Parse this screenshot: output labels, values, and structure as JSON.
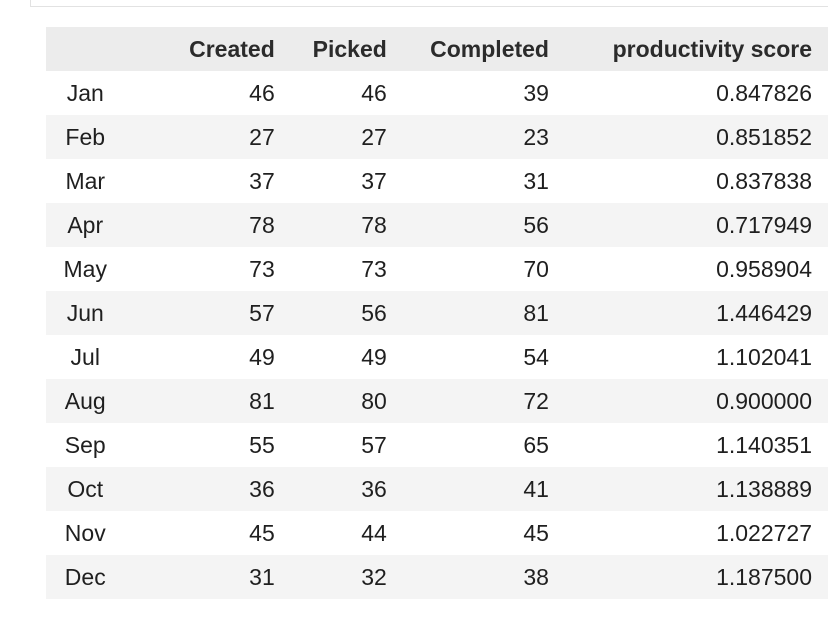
{
  "table": {
    "columns": [
      "",
      "Created",
      "Picked",
      "Completed",
      "productivity score"
    ],
    "rows": [
      {
        "month": "Jan",
        "created": "46",
        "picked": "46",
        "completed": "39",
        "score": "0.847826"
      },
      {
        "month": "Feb",
        "created": "27",
        "picked": "27",
        "completed": "23",
        "score": "0.851852"
      },
      {
        "month": "Mar",
        "created": "37",
        "picked": "37",
        "completed": "31",
        "score": "0.837838"
      },
      {
        "month": "Apr",
        "created": "78",
        "picked": "78",
        "completed": "56",
        "score": "0.717949"
      },
      {
        "month": "May",
        "created": "73",
        "picked": "73",
        "completed": "70",
        "score": "0.958904"
      },
      {
        "month": "Jun",
        "created": "57",
        "picked": "56",
        "completed": "81",
        "score": "1.446429"
      },
      {
        "month": "Jul",
        "created": "49",
        "picked": "49",
        "completed": "54",
        "score": "1.102041"
      },
      {
        "month": "Aug",
        "created": "81",
        "picked": "80",
        "completed": "72",
        "score": "0.900000"
      },
      {
        "month": "Sep",
        "created": "55",
        "picked": "57",
        "completed": "65",
        "score": "1.140351"
      },
      {
        "month": "Oct",
        "created": "36",
        "picked": "36",
        "completed": "41",
        "score": "1.138889"
      },
      {
        "month": "Nov",
        "created": "45",
        "picked": "44",
        "completed": "45",
        "score": "1.022727"
      },
      {
        "month": "Dec",
        "created": "31",
        "picked": "32",
        "completed": "38",
        "score": "1.187500"
      }
    ]
  },
  "colors": {
    "header_background": "#ececec",
    "striped_row_background": "#f4f4f4",
    "text": "#1f1f1f"
  }
}
